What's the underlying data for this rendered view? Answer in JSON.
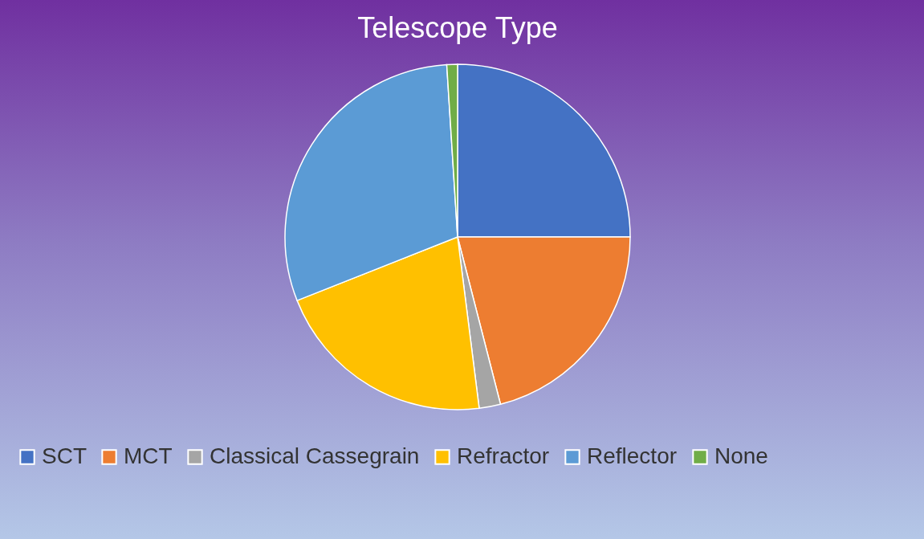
{
  "chart_data": {
    "type": "pie",
    "title": "Telescope Type",
    "categories": [
      "SCT",
      "MCT",
      "Classical Cassegrain",
      "Refractor",
      "Reflector",
      "None"
    ],
    "values": [
      25,
      21,
      2,
      21,
      30,
      1
    ],
    "colors": [
      "#4472c4",
      "#ed7d31",
      "#a5a5a5",
      "#ffc000",
      "#5b9bd5",
      "#70ad47"
    ],
    "legend": "bottom"
  }
}
